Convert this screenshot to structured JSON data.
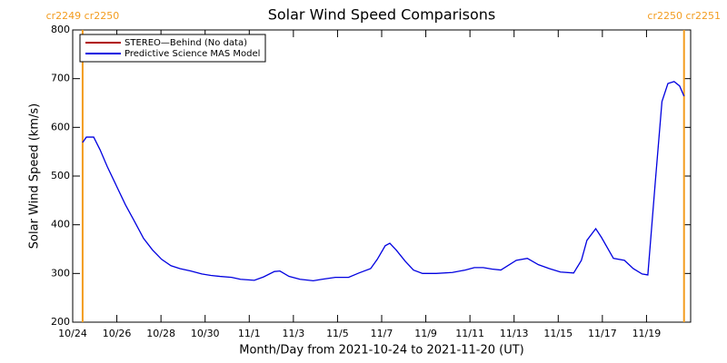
{
  "chart_data": {
    "type": "line",
    "title": "Solar Wind Speed Comparisons",
    "xlabel": "Month/Day from 2021-10-24 to 2021-11-20 (UT)",
    "ylabel": "Solar Wind Speed (km/s)",
    "xlim": [
      0,
      28
    ],
    "xticks": [
      {
        "value": 0,
        "label": "10/24"
      },
      {
        "value": 2,
        "label": "10/26"
      },
      {
        "value": 4,
        "label": "10/28"
      },
      {
        "value": 6,
        "label": "10/30"
      },
      {
        "value": 8,
        "label": "11/1"
      },
      {
        "value": 10,
        "label": "11/3"
      },
      {
        "value": 12,
        "label": "11/5"
      },
      {
        "value": 14,
        "label": "11/7"
      },
      {
        "value": 16,
        "label": "11/9"
      },
      {
        "value": 18,
        "label": "11/11"
      },
      {
        "value": 20,
        "label": "11/13"
      },
      {
        "value": 22,
        "label": "11/15"
      },
      {
        "value": 24,
        "label": "11/17"
      },
      {
        "value": 26,
        "label": "11/19"
      }
    ],
    "ylim": [
      200,
      800
    ],
    "yticks": [
      200,
      300,
      400,
      500,
      600,
      700,
      800
    ],
    "legend": "upper left",
    "annotations": [
      {
        "label": "cr2249 cr2250",
        "x": 0.45,
        "color": "#f39c1f"
      },
      {
        "label": "cr2250 cr2251",
        "x": 27.7,
        "color": "#f39c1f"
      }
    ],
    "series": [
      {
        "name": "STEREO—Behind (No data)",
        "color": "#b00000",
        "x": [],
        "values": []
      },
      {
        "name": "Predictive Science MAS Model",
        "color": "#0000e0",
        "x": [
          0.45,
          0.62,
          0.95,
          1.24,
          1.56,
          1.98,
          2.39,
          2.8,
          3.21,
          3.62,
          4.03,
          4.45,
          4.86,
          5.35,
          5.85,
          6.26,
          6.67,
          7.2,
          7.6,
          8.23,
          8.65,
          9.14,
          9.39,
          9.8,
          10.3,
          10.9,
          11.3,
          11.9,
          12.5,
          12.97,
          13.5,
          13.8,
          14.16,
          14.37,
          14.66,
          15.07,
          15.44,
          15.85,
          16.47,
          17.2,
          17.78,
          18.2,
          18.6,
          19.0,
          19.4,
          20.1,
          20.6,
          21.1,
          21.6,
          22.1,
          22.7,
          23.05,
          23.3,
          23.7,
          23.96,
          24.5,
          25.0,
          25.4,
          25.8,
          26.06,
          26.4,
          26.7,
          26.97,
          27.25,
          27.5,
          27.7
        ],
        "values": [
          569,
          580,
          580,
          554,
          520,
          480,
          441,
          407,
          372,
          348,
          329,
          316,
          310,
          305,
          299,
          296,
          294,
          292,
          288,
          286,
          293,
          304,
          305,
          294,
          288,
          285,
          288,
          292,
          292,
          301,
          310,
          329,
          357,
          362,
          348,
          325,
          307,
          300,
          300,
          302,
          307,
          312,
          312,
          309,
          307,
          327,
          331,
          318,
          310,
          303,
          301,
          327,
          368,
          392,
          374,
          331,
          327,
          310,
          299,
          297,
          489,
          653,
          690,
          694,
          685,
          664
        ]
      }
    ]
  }
}
